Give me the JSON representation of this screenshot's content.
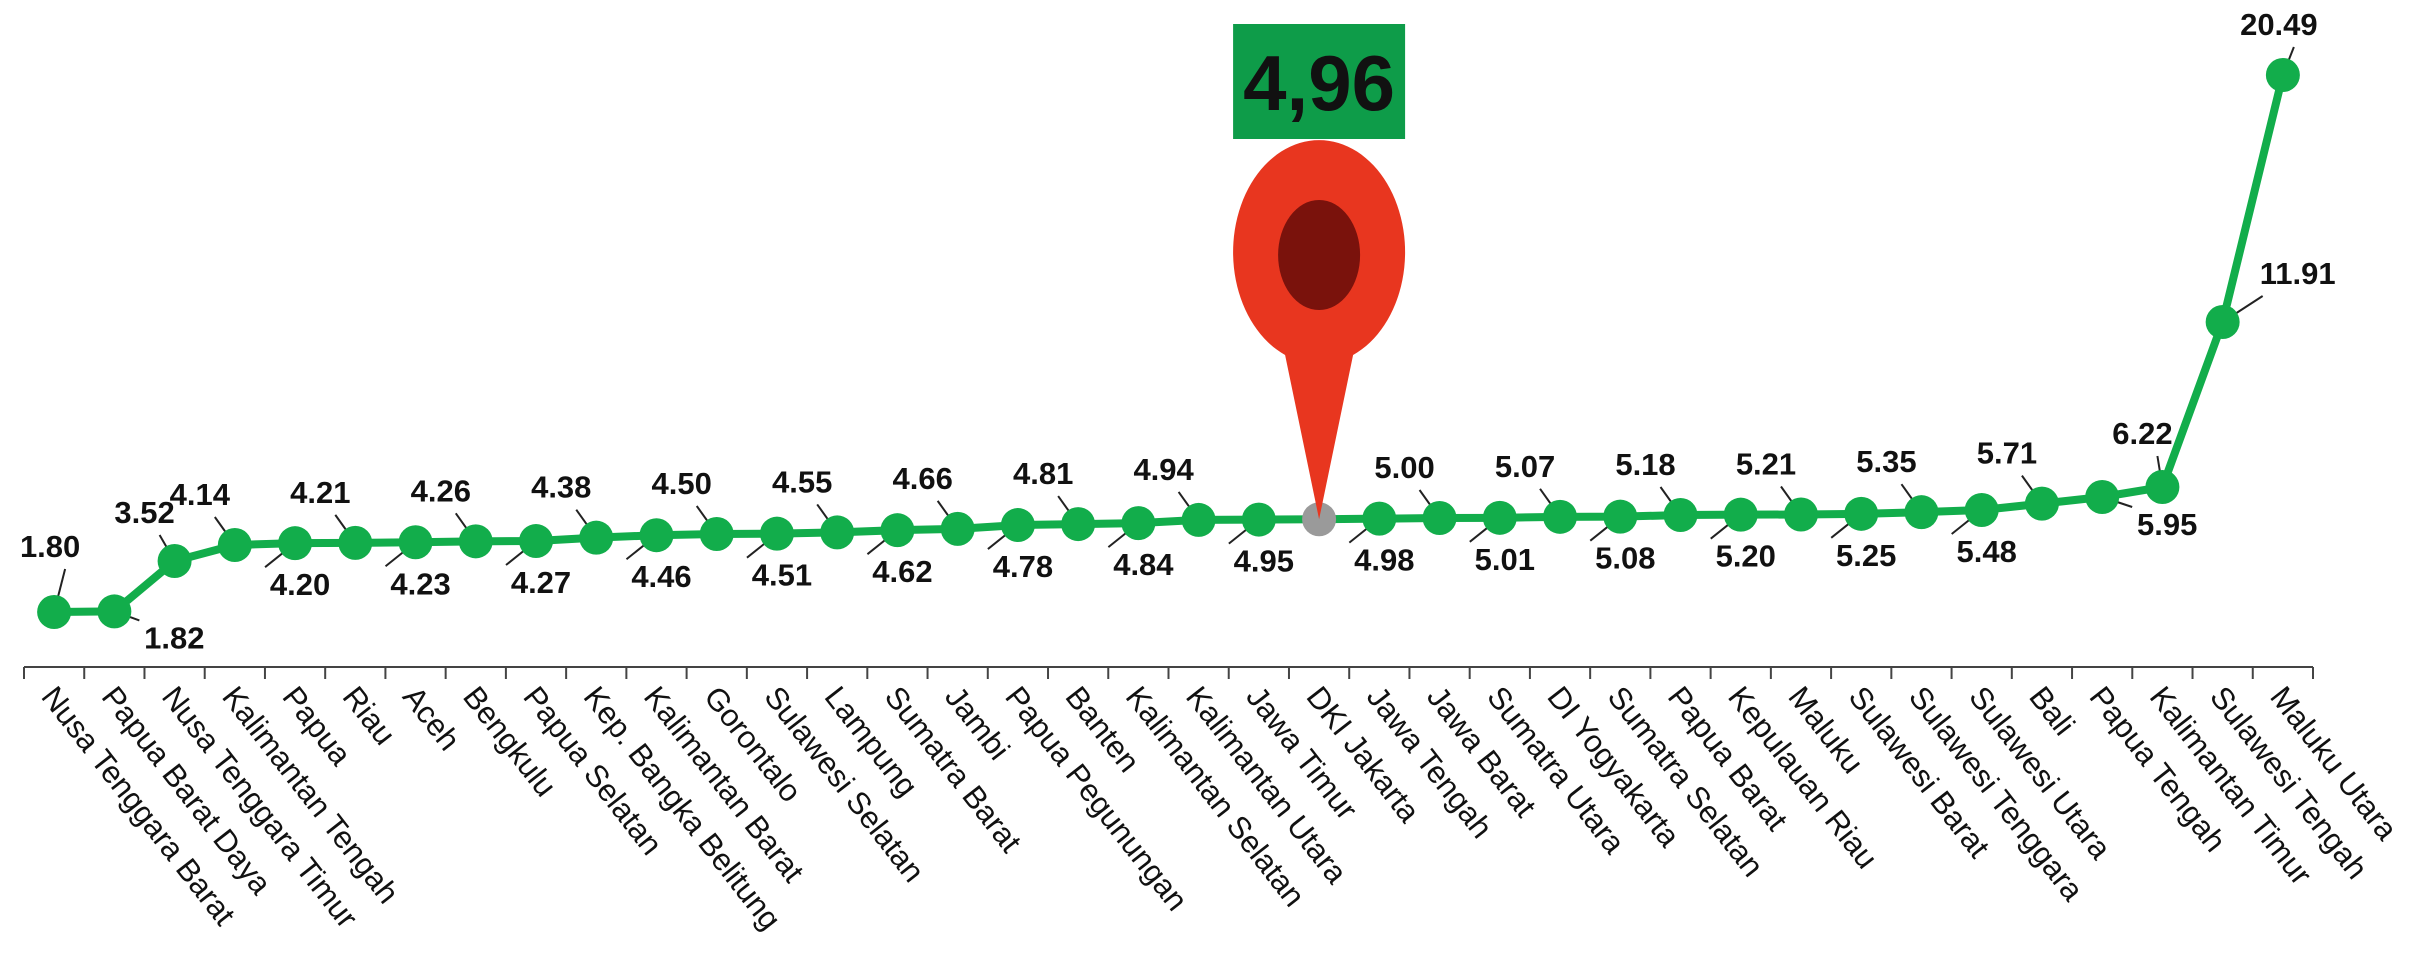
{
  "chart_data": {
    "type": "line",
    "categories": [
      "Nusa Tenggara Barat",
      "Papua Barat Daya",
      "Nusa Tenggara Timur",
      "Kalimantan Tengah",
      "Papua",
      "Riau",
      "Aceh",
      "Bengkulu",
      "Papua Selatan",
      "Kep. Bangka Belitung",
      "Kalimantan Barat",
      "Gorontalo",
      "Sulawesi Selatan",
      "Lampung",
      "Sumatra Barat",
      "Jambi",
      "Papua Pegunungan",
      "Banten",
      "Kalimantan Selatan",
      "Kalimantan Utara",
      "Jawa Timur",
      "DKI Jakarta",
      "Jawa Tengah",
      "Jawa Barat",
      "Sumatra Utara",
      "DI Yogyakarta",
      "Sumatra Selatan",
      "Papua Barat",
      "Kepulauan Riau",
      "Maluku",
      "Sulawesi Barat",
      "Sulawesi Tenggara",
      "Sulawesi Utara",
      "Bali",
      "Papua Tengah",
      "Kalimantan Timur",
      "Sulawesi Tengah",
      "Maluku Utara"
    ],
    "values": [
      1.8,
      1.82,
      3.52,
      4.14,
      4.2,
      4.21,
      4.23,
      4.26,
      4.27,
      4.38,
      4.46,
      4.5,
      4.51,
      4.55,
      4.62,
      4.66,
      4.78,
      4.81,
      4.84,
      4.94,
      4.95,
      4.96,
      4.98,
      5.0,
      5.01,
      5.07,
      5.08,
      5.18,
      5.2,
      5.21,
      5.25,
      5.35,
      5.48,
      5.71,
      5.95,
      6.22,
      11.91,
      20.49
    ],
    "value_labels": [
      "1.80",
      "1.82",
      "3.52",
      "4.14",
      "4.20",
      "4.21",
      "4.23",
      "4.26",
      "4.27",
      "4.38",
      "4.46",
      "4.50",
      "4.51",
      "4.55",
      "4.62",
      "4.66",
      "4.78",
      "4.81",
      "4.84",
      "4.94",
      "4.95",
      "",
      "4.98",
      "5.00",
      "5.01",
      "5.07",
      "5.08",
      "5.18",
      "5.20",
      "5.21",
      "5.25",
      "5.35",
      "5.48",
      "5.71",
      "5.95",
      "6.22",
      "11.91",
      "20.49"
    ],
    "highlight": {
      "category": "DKI Jakarta",
      "label": "4,96"
    },
    "title": "",
    "xlabel": "",
    "ylabel": "",
    "ylim": [
      0,
      22
    ],
    "grid": false,
    "legend": "none",
    "colors": {
      "line": "#12ad4b",
      "point": "#12ad4b",
      "highlight_point": "#9a9a9a",
      "badge": "#0e9c49",
      "pin": "#e8361f",
      "pin_hole": "#7a120c"
    }
  }
}
